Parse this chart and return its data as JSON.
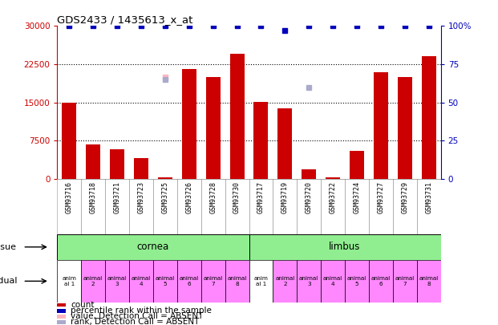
{
  "title": "GDS2433 / 1435613_x_at",
  "samples": [
    "GSM93716",
    "GSM93718",
    "GSM93721",
    "GSM93723",
    "GSM93725",
    "GSM93726",
    "GSM93728",
    "GSM93730",
    "GSM93717",
    "GSM93719",
    "GSM93720",
    "GSM93722",
    "GSM93724",
    "GSM93727",
    "GSM93729",
    "GSM93731"
  ],
  "counts": [
    15000,
    6800,
    5800,
    4000,
    200,
    21500,
    20000,
    24500,
    15100,
    13800,
    1800,
    200,
    5400,
    21000,
    20000,
    24000
  ],
  "percentile_ranks": [
    100,
    100,
    100,
    100,
    100,
    100,
    100,
    100,
    100,
    97,
    100,
    100,
    100,
    100,
    100,
    100
  ],
  "absent_values": [
    null,
    null,
    null,
    null,
    20000,
    null,
    null,
    null,
    null,
    null,
    null,
    null,
    null,
    null,
    null,
    null
  ],
  "absent_ranks": [
    null,
    null,
    null,
    null,
    65,
    null,
    null,
    null,
    null,
    null,
    60,
    null,
    null,
    null,
    null,
    null
  ],
  "ylim_left": [
    0,
    30000
  ],
  "ylim_right": [
    0,
    100
  ],
  "yticks_left": [
    0,
    7500,
    15000,
    22500,
    30000
  ],
  "yticks_right": [
    0,
    25,
    50,
    75,
    100
  ],
  "tissue_cornea_label": "cornea",
  "tissue_limbus_label": "limbus",
  "tissue_color": "#90EE90",
  "individual_labels": [
    "anim\nal 1",
    "animal\n2",
    "animal\n3",
    "animal\n4",
    "animal\n5",
    "animal\n6",
    "animal\n7",
    "animal\n8",
    "anim\nal 1",
    "animal\n2",
    "animal\n3",
    "animal\n4",
    "animal\n5",
    "animal\n6",
    "animal\n7",
    "animal\n8"
  ],
  "individual_colors": [
    "#ffffff",
    "#FF88FF",
    "#FF88FF",
    "#FF88FF",
    "#FF88FF",
    "#FF88FF",
    "#FF88FF",
    "#FF88FF",
    "#ffffff",
    "#FF88FF",
    "#FF88FF",
    "#FF88FF",
    "#FF88FF",
    "#FF88FF",
    "#FF88FF",
    "#FF88FF"
  ],
  "bar_color": "#CC0000",
  "dot_color": "#0000BB",
  "absent_value_color": "#FFB6C1",
  "absent_rank_color": "#AAAACC",
  "left_axis_color": "#CC0000",
  "right_axis_color": "#0000BB",
  "legend_items": [
    {
      "color": "#CC0000",
      "label": "count"
    },
    {
      "color": "#0000BB",
      "label": "percentile rank within the sample"
    },
    {
      "color": "#FFB6C1",
      "label": "value, Detection Call = ABSENT"
    },
    {
      "color": "#AAAACC",
      "label": "rank, Detection Call = ABSENT"
    }
  ]
}
